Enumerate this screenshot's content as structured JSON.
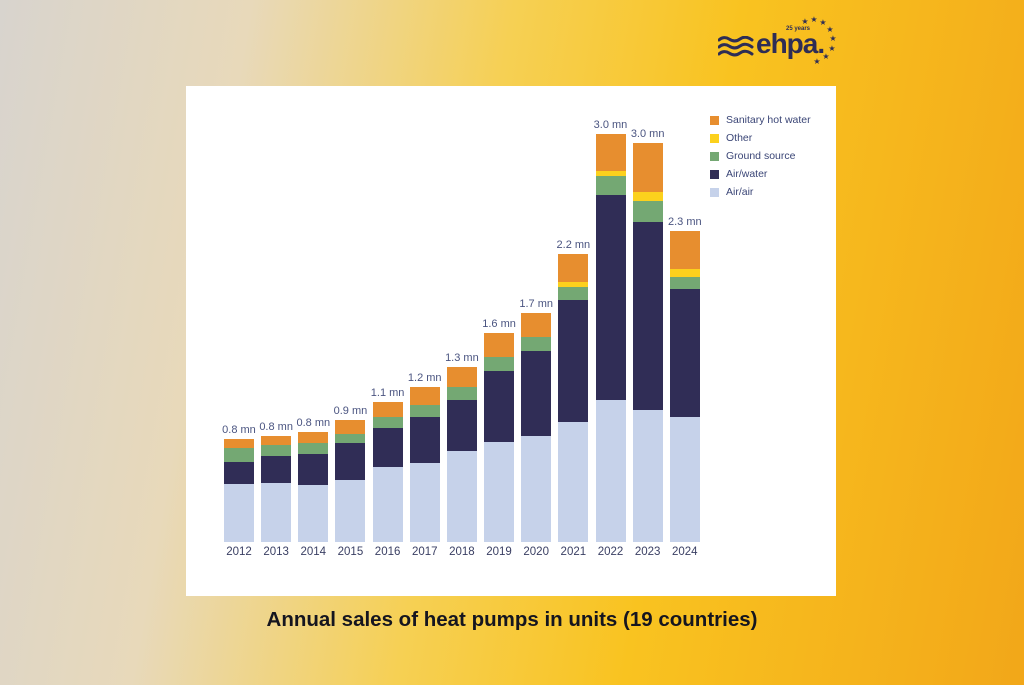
{
  "logo": {
    "text": "ehpa.",
    "years_label": "25 years",
    "color": "#2e2d55"
  },
  "title": "Annual sales of heat pumps in units (19 countries)",
  "chart_data": {
    "type": "bar",
    "stacked": true,
    "title": "Annual sales of heat pumps in units (19 countries)",
    "unit": "mn units",
    "xlabel": "",
    "ylabel": "",
    "ylim": [
      0,
      3.2
    ],
    "grid": false,
    "legend_position": "top-right",
    "categories": [
      "2012",
      "2013",
      "2014",
      "2015",
      "2016",
      "2017",
      "2018",
      "2019",
      "2020",
      "2021",
      "2022",
      "2023",
      "2024"
    ],
    "series": [
      {
        "name": "Air/air",
        "color": "#c6d2ea",
        "values": [
          0.43,
          0.43,
          0.42,
          0.46,
          0.55,
          0.58,
          0.67,
          0.74,
          0.78,
          0.88,
          1.05,
          0.97,
          0.92
        ]
      },
      {
        "name": "Air/water",
        "color": "#302d56",
        "values": [
          0.16,
          0.2,
          0.23,
          0.27,
          0.29,
          0.34,
          0.38,
          0.52,
          0.63,
          0.9,
          1.51,
          1.39,
          0.94
        ]
      },
      {
        "name": "Ground source",
        "color": "#74a873",
        "values": [
          0.1,
          0.08,
          0.08,
          0.07,
          0.08,
          0.09,
          0.09,
          0.1,
          0.1,
          0.1,
          0.14,
          0.15,
          0.09
        ]
      },
      {
        "name": "Other",
        "color": "#fcd11d",
        "values": [
          0.0,
          0.0,
          0.0,
          0.0,
          0.0,
          0.0,
          0.0,
          0.0,
          0.0,
          0.03,
          0.04,
          0.07,
          0.06
        ]
      },
      {
        "name": "Sanitary hot water",
        "color": "#e78e2f",
        "values": [
          0.07,
          0.07,
          0.08,
          0.1,
          0.11,
          0.13,
          0.15,
          0.18,
          0.18,
          0.21,
          0.27,
          0.36,
          0.28
        ]
      }
    ],
    "bar_labels": [
      "0.8 mn",
      "0.8 mn",
      "0.8 mn",
      "0.9 mn",
      "1.1 mn",
      "1.2 mn",
      "1.3 mn",
      "1.6 mn",
      "1.7 mn",
      "2.2 mn",
      "3.0 mn",
      "3.0 mn",
      "2.3 mn"
    ],
    "legend": [
      {
        "label": "Sanitary hot water",
        "color": "#e78e2f"
      },
      {
        "label": "Other",
        "color": "#fcd11d"
      },
      {
        "label": "Ground source",
        "color": "#74a873"
      },
      {
        "label": "Air/water",
        "color": "#302d56"
      },
      {
        "label": "Air/air",
        "color": "#c6d2ea"
      }
    ]
  }
}
